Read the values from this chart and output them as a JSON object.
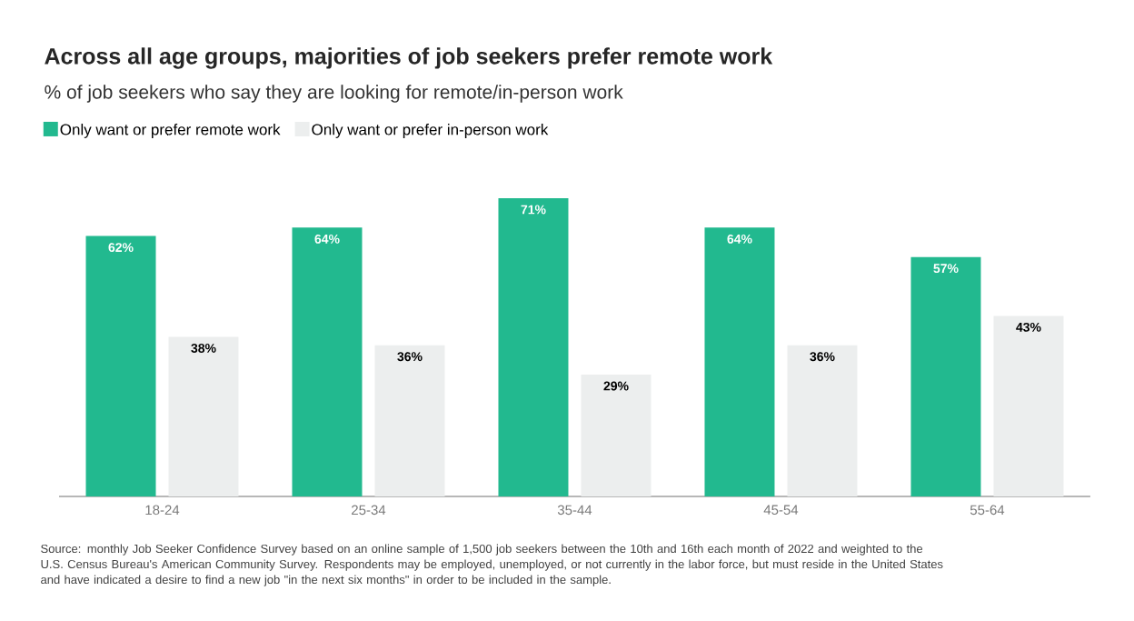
{
  "chart_data": {
    "type": "bar",
    "title": "Across all age groups, majorities of job seekers prefer remote work",
    "subtitle": "% of job seekers who say they are looking for remote/in-person work",
    "categories": [
      "18-24",
      "25-34",
      "35-44",
      "45-54",
      "55-64"
    ],
    "series": [
      {
        "name": "Only want or prefer remote work",
        "color": "#22b98f",
        "values": [
          62,
          64,
          71,
          64,
          57
        ],
        "value_labels": [
          "62%",
          "64%",
          "71%",
          "64%",
          "57%"
        ]
      },
      {
        "name": "Only want or prefer in-person work",
        "color": "#eceeee",
        "values": [
          38,
          36,
          29,
          36,
          43
        ],
        "value_labels": [
          "38%",
          "36%",
          "29%",
          "36%",
          "43%"
        ]
      }
    ],
    "tick_labels": "x",
    "legend": "top left",
    "annotations": [
      "Source: monthly Job Seeker Confidence Survey based on an online sample of 1,500 job seekers between the 10th and 16th each month of 2022 and weighted to the U.S. Census Bureau's American Community Survey. Respondents may be employed, unemployed, or not currently in the labor force, but must reside in the United States and have indicated a desire to find a new job \"in the next six months\" in order to be included in the sample."
    ]
  }
}
